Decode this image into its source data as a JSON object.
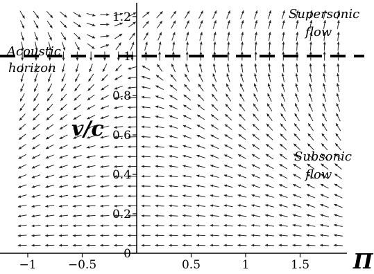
{
  "chart_data": {
    "type": "vector-field",
    "title": "",
    "xlabel": "Π",
    "ylabel": "v/c",
    "xlim": [
      -1.1,
      1.9
    ],
    "ylim": [
      0,
      1.25
    ],
    "x_ticks": [
      {
        "value": -1,
        "label": "−1"
      },
      {
        "value": -0.5,
        "label": "−0.5"
      },
      {
        "value": 0.5,
        "label": "0.5"
      },
      {
        "value": 1,
        "label": "1"
      },
      {
        "value": 1.5,
        "label": "1.5"
      }
    ],
    "y_ticks": [
      {
        "value": 0,
        "label": "0"
      },
      {
        "value": 0.2,
        "label": "0.2"
      },
      {
        "value": 0.4,
        "label": "0.4"
      },
      {
        "value": 0.6,
        "label": "0.6"
      },
      {
        "value": 0.8,
        "label": "0.8"
      },
      {
        "value": 1,
        "label": "1"
      },
      {
        "value": 1.2,
        "label": "1.2"
      }
    ],
    "acoustic_horizon_y": 1,
    "grid": false,
    "annotations": [
      {
        "text": "Acoustic",
        "region": "left of horizon, upper"
      },
      {
        "text": "horizon",
        "region": "left of horizon, lower"
      },
      {
        "text": "Supersonic",
        "region": "top-right"
      },
      {
        "text": "flow",
        "region": "top-right"
      },
      {
        "text": "Subsonic",
        "region": "right-middle"
      },
      {
        "text": "flow",
        "region": "right-middle"
      }
    ],
    "field": {
      "x_range": [
        -1.05,
        1.85
      ],
      "x_steps": 24,
      "y_values": [
        0.04,
        0.09,
        0.14,
        0.19,
        0.24,
        0.29,
        0.34,
        0.39,
        0.44,
        0.49,
        0.54,
        0.59,
        0.64,
        0.69,
        0.74,
        0.79,
        0.84,
        0.89,
        0.94,
        1.0,
        1.05,
        1.1,
        1.16,
        1.21
      ],
      "equations": "dPi = -(1 - v^2) ; dv = v * Pi  (normalized directions)"
    }
  }
}
